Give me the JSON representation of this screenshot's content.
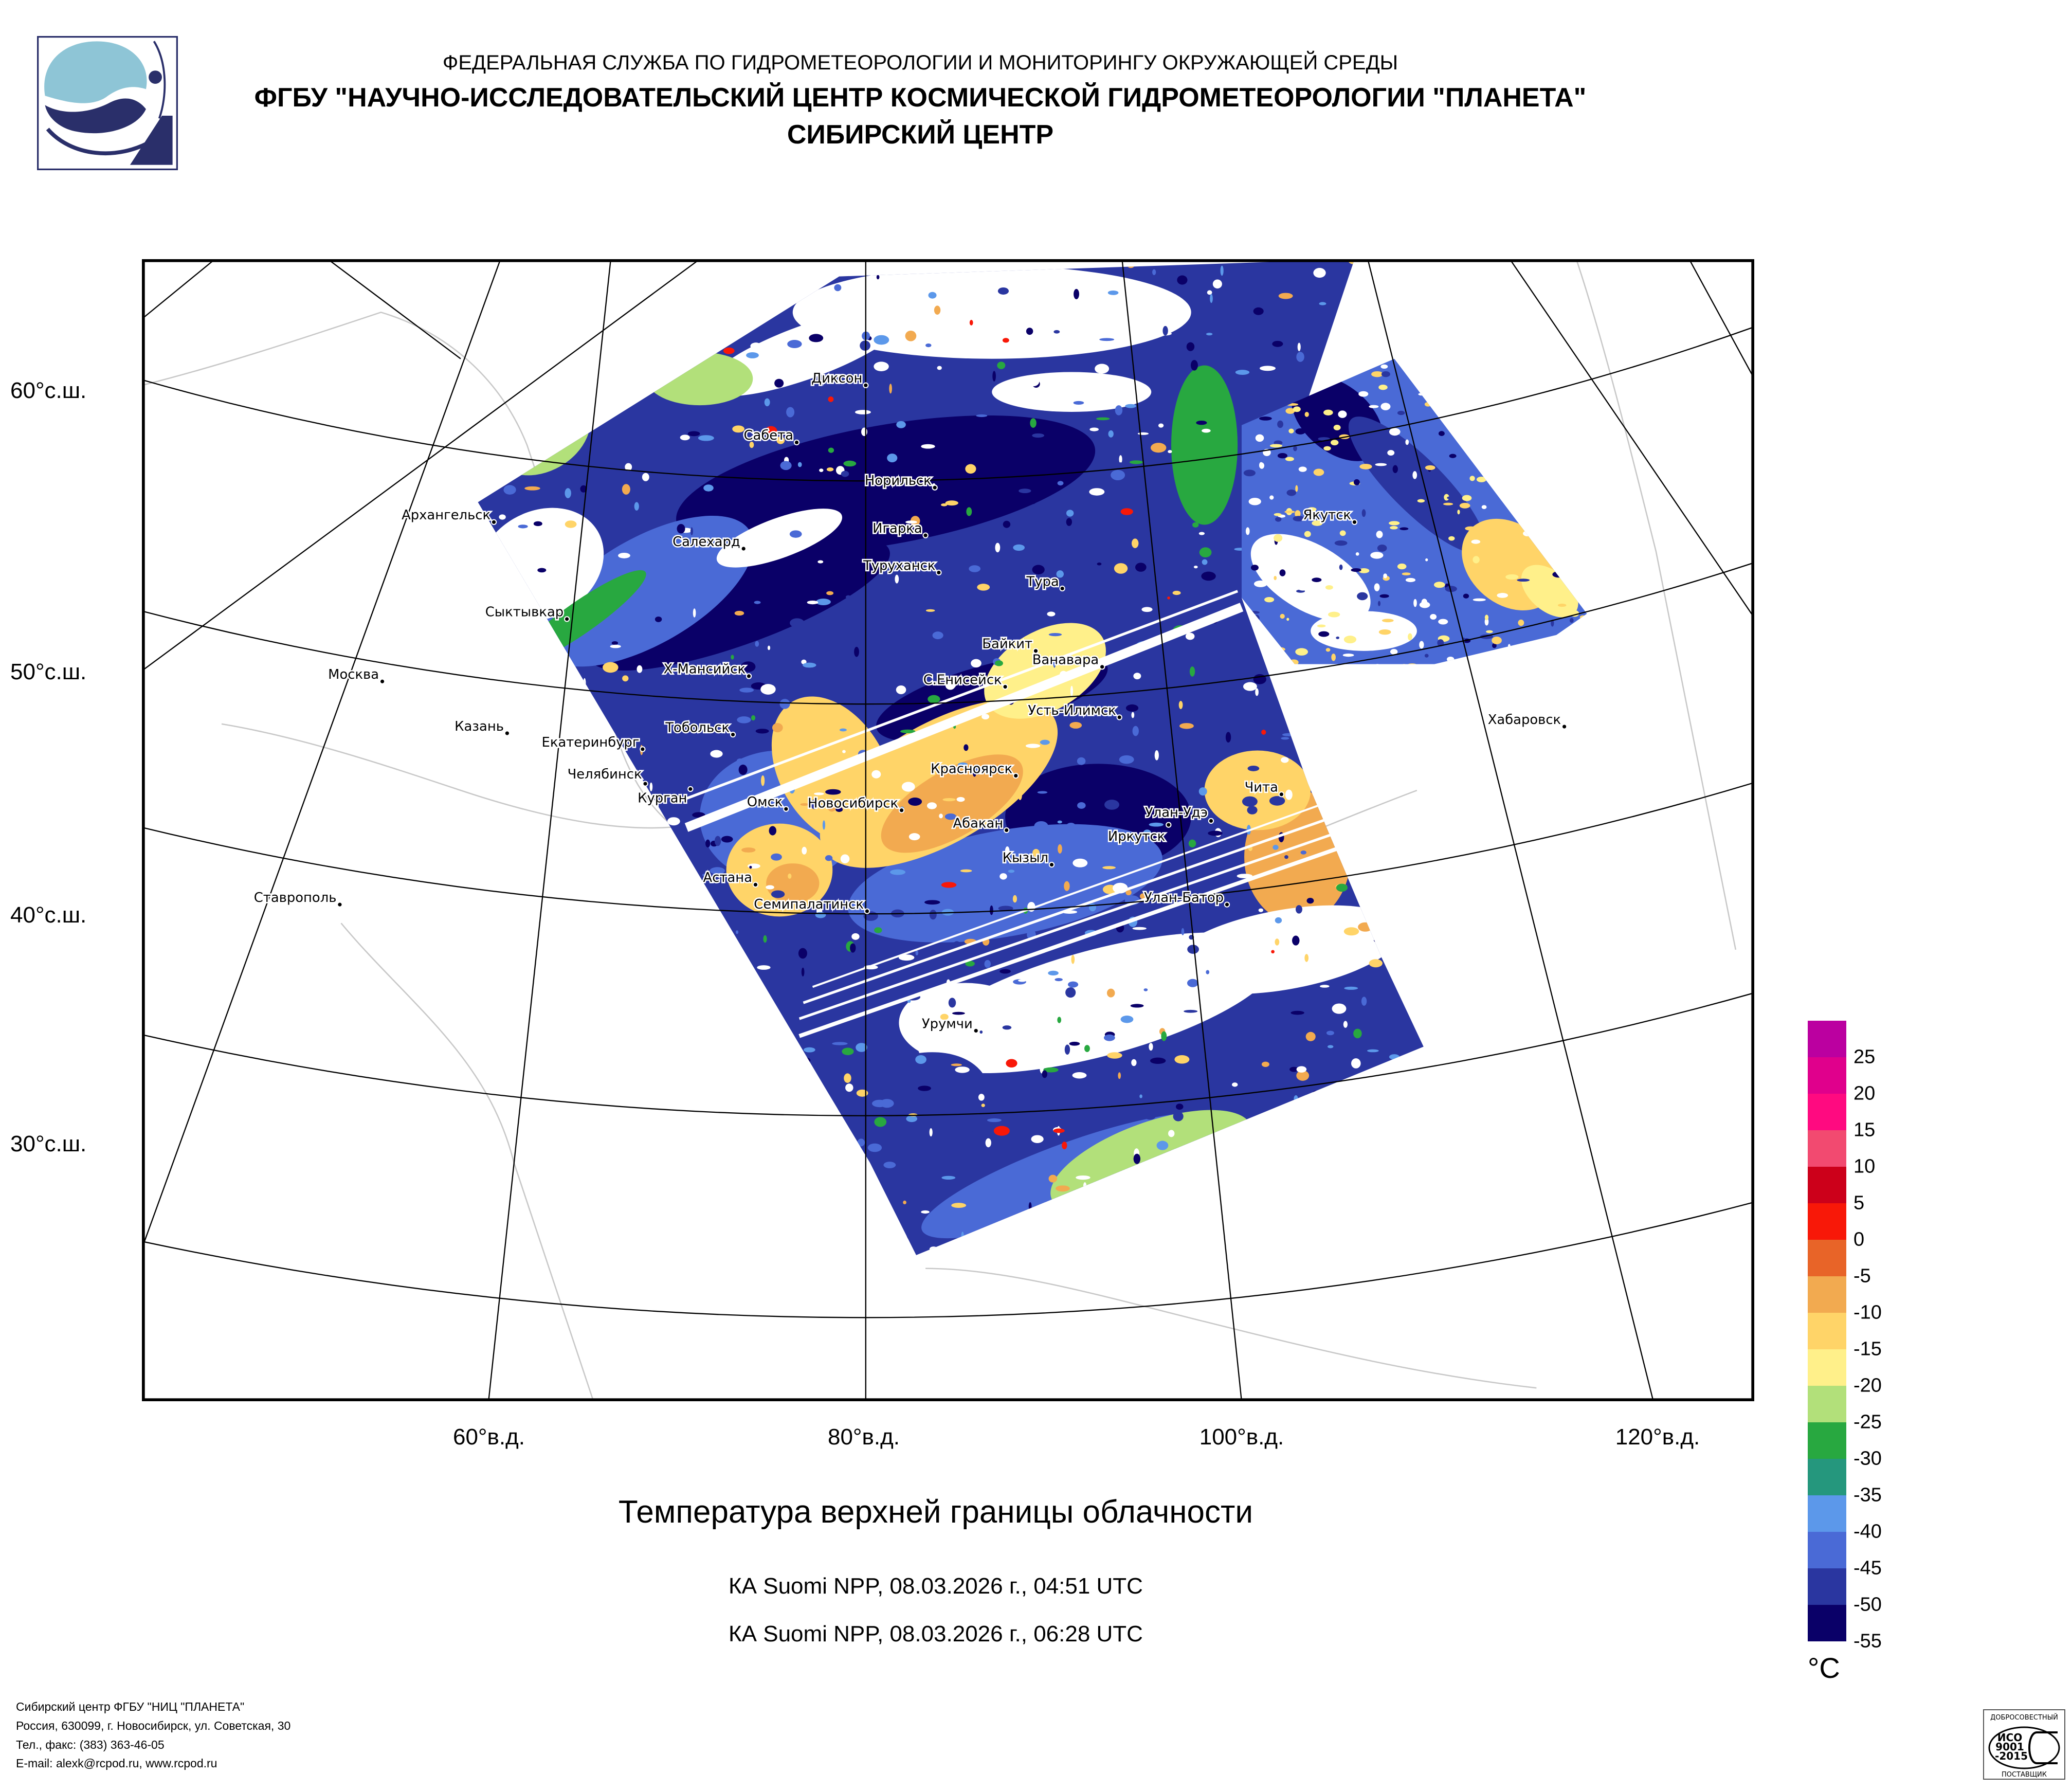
{
  "header": {
    "agency": "ФЕДЕРАЛЬНАЯ СЛУЖБА ПО ГИДРОМЕТЕОРОЛОГИИ И МОНИТОРИНГУ ОКРУЖАЮЩЕЙ СРЕДЫ",
    "institute": "ФГБУ \"НАУЧНО-ИССЛЕДОВАТЕЛЬСКИЙ ЦЕНТР КОСМИЧЕСКОЙ ГИДРОМЕТЕОРОЛОГИИ \"ПЛАНЕТА\"",
    "center": "СИБИРСКИЙ ЦЕНТР"
  },
  "map": {
    "lat_labels": [
      "60°с.ш.",
      "50°с.ш.",
      "40°с.ш.",
      "30°с.ш."
    ],
    "lon_labels": [
      "60°в.д.",
      "80°в.д.",
      "100°в.д.",
      "120°в.д."
    ],
    "cities": [
      "Диксон",
      "Сабета",
      "Норильск",
      "Архангельск",
      "Игарка",
      "Салехард",
      "Туруханск",
      "Тура",
      "Якутск",
      "Сыктывкар",
      "Байкит",
      "Ванавара",
      "Москва",
      "Х-Мансийск",
      "С.Енисейск",
      "Усть-Илимск",
      "Хабаровск",
      "Казань",
      "Тобольск",
      "Екатеринбург",
      "Красноярск",
      "Челябинск",
      "Курган",
      "Чита",
      "Омск",
      "Новосибирск",
      "Абакан",
      "Улан-Удэ",
      "Иркутск",
      "Кызыл",
      "Астана",
      "Ставрополь",
      "Семипалатинск",
      "Улан-Батор",
      "Урумчи"
    ]
  },
  "title": "Температура верхней границы облачности",
  "passes": [
    "КА Suomi NPP, 08.03.2026 г., 04:51 UTC",
    "КА Suomi NPP, 08.03.2026 г., 06:28 UTC"
  ],
  "legend": {
    "unit": "°C",
    "labels": [
      "25",
      "20",
      "15",
      "10",
      "5",
      "0",
      "-5",
      "-10",
      "-15",
      "-20",
      "-25",
      "-30",
      "-35",
      "-40",
      "-45",
      "-50",
      "-55"
    ],
    "colors": [
      "#bb00a0",
      "#e0008c",
      "#ff0a80",
      "#f24a70",
      "#cc001a",
      "#f81808",
      "#e86428",
      "#f2aa50",
      "#ffd468",
      "#fff08a",
      "#b2e07a",
      "#28a840",
      "#25977d",
      "#5c98ea",
      "#4a6ad6",
      "#2a36a0",
      "#0a0068"
    ]
  },
  "footer": {
    "lines": [
      "Сибирский центр ФГБУ \"НИЦ \"ПЛАНЕТА\"",
      "Россия, 630099, г. Новосибирск, ул. Советская, 30",
      "Тел., факс: (383) 363-46-05",
      "E-mail: alexk@rcpod.ru, www.rcpod.ru"
    ]
  },
  "iso_badge": {
    "top": "ДОБРОСОВЕСТНЫЙ",
    "text1": "ИСО",
    "text2": "9001",
    "text3": "-2015",
    "bottom": "ПОСТАВЩИК"
  }
}
